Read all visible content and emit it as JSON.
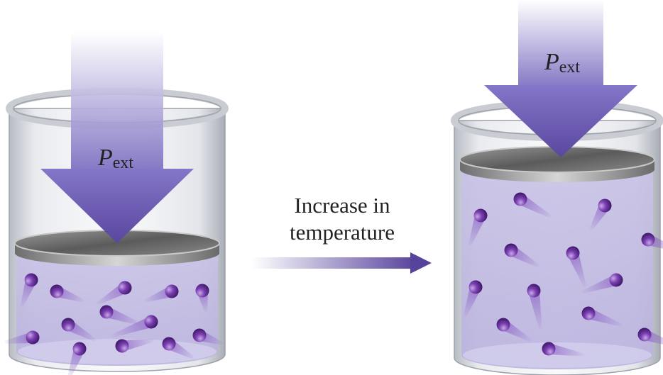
{
  "left_container": {
    "pressure_label": {
      "symbol": "P",
      "subscript": "ext"
    }
  },
  "process_arrow": {
    "label_lines": [
      "Increase in",
      "temperature"
    ]
  },
  "right_container": {
    "pressure_label": {
      "symbol": "P",
      "subscript": "ext"
    }
  }
}
